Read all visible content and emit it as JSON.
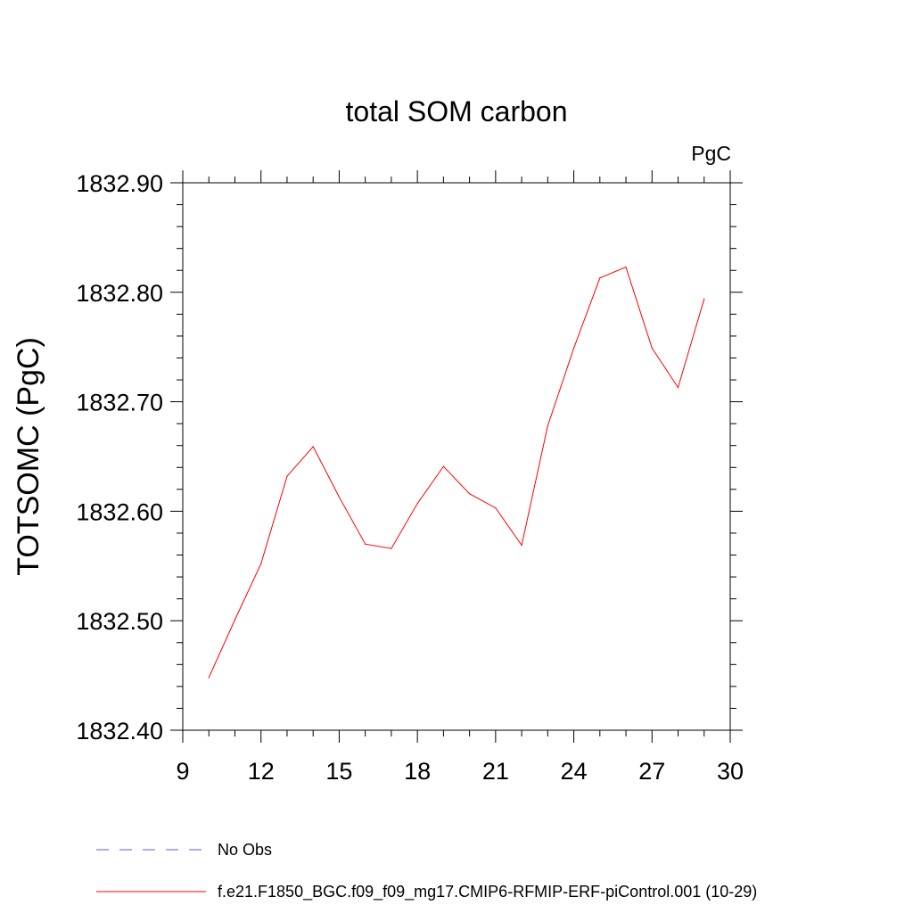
{
  "chart_data": {
    "type": "line",
    "title": "total SOM carbon",
    "units_label": "PgC",
    "ylabel": "TOTSOMC  (PgC)",
    "xlabel": "",
    "xlim": [
      9,
      30
    ],
    "ylim": [
      1832.4,
      1832.9
    ],
    "xticks": [
      9,
      12,
      15,
      18,
      21,
      24,
      27,
      30
    ],
    "yticks": [
      1832.4,
      1832.5,
      1832.6,
      1832.7,
      1832.8,
      1832.9
    ],
    "ytick_labels": [
      "1832.40",
      "1832.50",
      "1832.60",
      "1832.70",
      "1832.80",
      "1832.90"
    ],
    "grid": false,
    "series": [
      {
        "name": "f.e21.F1850_BGC.f09_f09_mg17.CMIP6-RFMIP-ERF-piControl.001 (10-29)",
        "color": "#ff0000",
        "style": "solid",
        "x": [
          10,
          11,
          12,
          13,
          14,
          15,
          16,
          17,
          18,
          19,
          20,
          21,
          22,
          23,
          24,
          25,
          26,
          27,
          28,
          29
        ],
        "y": [
          1832.448,
          1832.501,
          1832.552,
          1832.632,
          1832.659,
          1832.613,
          1832.57,
          1832.566,
          1832.607,
          1832.641,
          1832.616,
          1832.603,
          1832.569,
          1832.678,
          1832.749,
          1832.813,
          1832.823,
          1832.749,
          1832.713,
          1832.794
        ]
      }
    ],
    "legend": {
      "placement": "bottom-left",
      "entries": [
        {
          "label": "No Obs",
          "color": "#6a5acd",
          "style": "dashed"
        },
        {
          "label": "f.e21.F1850_BGC.f09_f09_mg17.CMIP6-RFMIP-ERF-piControl.001 (10-29)",
          "color": "#ff0000",
          "style": "solid"
        }
      ]
    }
  }
}
